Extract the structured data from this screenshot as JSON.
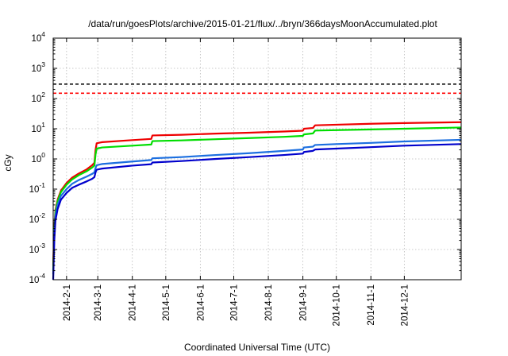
{
  "chart_data": {
    "type": "line",
    "title": "/data/run/goesPlots/archive/2015-01-21/flux/../bryn/366daysMoonAccumulated.plot",
    "xlabel": "Coordinated Universal Time (UTC)",
    "ylabel": "cGy",
    "yscale": "log",
    "ylim_exponents": [
      -4,
      4
    ],
    "xlim": [
      "2014-01-20",
      "2015-01-21"
    ],
    "grid": true,
    "x_ticks": [
      "2014-2-1",
      "2014-3-1",
      "2014-4-1",
      "2014-5-1",
      "2014-6-1",
      "2014-7-1",
      "2014-8-1",
      "2014-9-1",
      "2014-10-1",
      "2014-11-1",
      "2014-12-1"
    ],
    "y_ticks": [
      {
        "base": "10",
        "exp": "-4"
      },
      {
        "base": "10",
        "exp": "-3"
      },
      {
        "base": "10",
        "exp": "-2"
      },
      {
        "base": "10",
        "exp": "-1"
      },
      {
        "base": "10",
        "exp": "0"
      },
      {
        "base": "10",
        "exp": "1"
      },
      {
        "base": "10",
        "exp": "2"
      },
      {
        "base": "10",
        "exp": "3"
      },
      {
        "base": "10",
        "exp": "4"
      }
    ],
    "hlines": [
      {
        "y": 300,
        "color": "#000000"
      },
      {
        "y": 150,
        "color": "#ff0000"
      }
    ],
    "series": [
      {
        "color": "#ee0000",
        "points": [
          [
            "2014-01-20",
            0.0003
          ],
          [
            "2014-01-21",
            0.005
          ],
          [
            "2014-01-22",
            0.02
          ],
          [
            "2014-01-24",
            0.045
          ],
          [
            "2014-01-27",
            0.09
          ],
          [
            "2014-02-01",
            0.16
          ],
          [
            "2014-02-06",
            0.24
          ],
          [
            "2014-02-12",
            0.33
          ],
          [
            "2014-02-19",
            0.45
          ],
          [
            "2014-02-24",
            0.62
          ],
          [
            "2014-02-26",
            0.75
          ],
          [
            "2014-02-27",
            2.0
          ],
          [
            "2014-02-28",
            3.3
          ],
          [
            "2014-03-05",
            3.6
          ],
          [
            "2014-04-01",
            4.2
          ],
          [
            "2014-04-18",
            4.6
          ],
          [
            "2014-04-19",
            6.0
          ],
          [
            "2014-05-15",
            6.3
          ],
          [
            "2014-06-15",
            6.9
          ],
          [
            "2014-07-15",
            7.4
          ],
          [
            "2014-08-15",
            8.1
          ],
          [
            "2014-09-01",
            8.6
          ],
          [
            "2014-09-02",
            10.0
          ],
          [
            "2014-09-10",
            10.6
          ],
          [
            "2014-09-12",
            13.0
          ],
          [
            "2014-10-01",
            13.6
          ],
          [
            "2014-11-01",
            14.6
          ],
          [
            "2014-12-01",
            15.4
          ],
          [
            "2015-01-21",
            16.5
          ]
        ]
      },
      {
        "color": "#00dd00",
        "points": [
          [
            "2014-01-20",
            0.0002
          ],
          [
            "2014-01-21",
            0.004
          ],
          [
            "2014-01-22",
            0.017
          ],
          [
            "2014-01-24",
            0.04
          ],
          [
            "2014-01-27",
            0.08
          ],
          [
            "2014-02-01",
            0.14
          ],
          [
            "2014-02-06",
            0.21
          ],
          [
            "2014-02-12",
            0.29
          ],
          [
            "2014-02-19",
            0.39
          ],
          [
            "2014-02-24",
            0.52
          ],
          [
            "2014-02-26",
            0.6
          ],
          [
            "2014-02-27",
            1.4
          ],
          [
            "2014-02-28",
            2.2
          ],
          [
            "2014-03-05",
            2.4
          ],
          [
            "2014-04-01",
            2.75
          ],
          [
            "2014-04-18",
            3.0
          ],
          [
            "2014-04-19",
            3.9
          ],
          [
            "2014-05-15",
            4.1
          ],
          [
            "2014-06-15",
            4.5
          ],
          [
            "2014-07-15",
            4.9
          ],
          [
            "2014-08-15",
            5.4
          ],
          [
            "2014-09-01",
            5.8
          ],
          [
            "2014-09-02",
            6.5
          ],
          [
            "2014-09-10",
            7.0
          ],
          [
            "2014-09-12",
            8.7
          ],
          [
            "2014-10-01",
            9.0
          ],
          [
            "2014-11-01",
            9.5
          ],
          [
            "2014-12-01",
            10.0
          ],
          [
            "2015-01-21",
            11.0
          ]
        ]
      },
      {
        "color": "#1c6fe0",
        "points": [
          [
            "2014-01-20",
            0.00015
          ],
          [
            "2014-01-21",
            0.003
          ],
          [
            "2014-01-22",
            0.013
          ],
          [
            "2014-01-24",
            0.03
          ],
          [
            "2014-01-27",
            0.06
          ],
          [
            "2014-02-01",
            0.1
          ],
          [
            "2014-02-06",
            0.15
          ],
          [
            "2014-02-12",
            0.2
          ],
          [
            "2014-02-19",
            0.26
          ],
          [
            "2014-02-24",
            0.32
          ],
          [
            "2014-02-26",
            0.36
          ],
          [
            "2014-02-27",
            0.5
          ],
          [
            "2014-02-28",
            0.62
          ],
          [
            "2014-03-05",
            0.68
          ],
          [
            "2014-04-01",
            0.82
          ],
          [
            "2014-04-18",
            0.92
          ],
          [
            "2014-04-19",
            1.05
          ],
          [
            "2014-05-15",
            1.15
          ],
          [
            "2014-06-15",
            1.35
          ],
          [
            "2014-07-15",
            1.55
          ],
          [
            "2014-08-15",
            1.85
          ],
          [
            "2014-09-01",
            2.05
          ],
          [
            "2014-09-02",
            2.4
          ],
          [
            "2014-09-10",
            2.55
          ],
          [
            "2014-09-12",
            2.9
          ],
          [
            "2014-10-01",
            3.1
          ],
          [
            "2014-11-01",
            3.4
          ],
          [
            "2014-12-01",
            3.8
          ],
          [
            "2015-01-21",
            4.3
          ]
        ]
      },
      {
        "color": "#0000cc",
        "points": [
          [
            "2014-01-20",
            0.0001
          ],
          [
            "2014-01-21",
            0.002
          ],
          [
            "2014-01-22",
            0.009
          ],
          [
            "2014-01-24",
            0.022
          ],
          [
            "2014-01-27",
            0.045
          ],
          [
            "2014-02-01",
            0.075
          ],
          [
            "2014-02-06",
            0.11
          ],
          [
            "2014-02-12",
            0.14
          ],
          [
            "2014-02-19",
            0.18
          ],
          [
            "2014-02-24",
            0.22
          ],
          [
            "2014-02-26",
            0.25
          ],
          [
            "2014-02-27",
            0.36
          ],
          [
            "2014-02-28",
            0.44
          ],
          [
            "2014-03-05",
            0.48
          ],
          [
            "2014-04-01",
            0.6
          ],
          [
            "2014-04-18",
            0.67
          ],
          [
            "2014-04-19",
            0.76
          ],
          [
            "2014-05-15",
            0.85
          ],
          [
            "2014-06-15",
            1.0
          ],
          [
            "2014-07-15",
            1.15
          ],
          [
            "2014-08-15",
            1.35
          ],
          [
            "2014-09-01",
            1.5
          ],
          [
            "2014-09-02",
            1.7
          ],
          [
            "2014-09-10",
            1.85
          ],
          [
            "2014-09-12",
            2.05
          ],
          [
            "2014-10-01",
            2.2
          ],
          [
            "2014-11-01",
            2.45
          ],
          [
            "2014-12-01",
            2.75
          ],
          [
            "2015-01-21",
            3.1
          ]
        ]
      }
    ]
  }
}
